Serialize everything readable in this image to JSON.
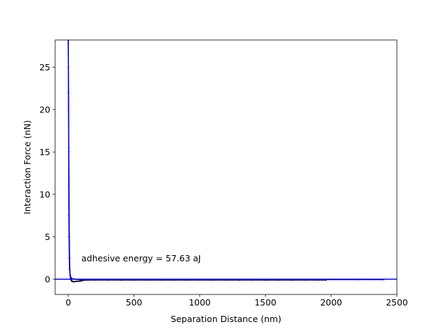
{
  "chart_data": {
    "type": "line",
    "xlabel": "Separation Distance (nm)",
    "ylabel": "Interaction Force (nN)",
    "xlim": [
      -100,
      2500
    ],
    "ylim": [
      -1.8,
      28.2
    ],
    "x_ticks": [
      0,
      500,
      1000,
      1500,
      2000,
      2500
    ],
    "y_ticks": [
      0,
      5,
      10,
      15,
      20,
      25
    ],
    "grid": false,
    "annotation": {
      "text": "adhesive energy = 57.63 aJ",
      "x": 100,
      "y": 2.1
    },
    "reference_line": {
      "y": 0,
      "color": "#0000ff"
    },
    "series": [
      {
        "color": "#000000",
        "marker": "dot",
        "x": [
          0,
          2,
          4,
          6,
          8,
          10,
          12,
          15,
          18,
          22,
          26,
          30,
          35,
          40,
          50,
          60,
          70,
          80,
          90,
          100,
          120,
          150,
          200,
          300,
          400,
          500,
          600,
          700,
          800,
          900,
          1000,
          1100,
          1200,
          1300,
          1400,
          1500,
          1600,
          1700,
          1800,
          1900,
          1960
        ],
        "y": [
          28.2,
          22.0,
          15.0,
          9.0,
          5.0,
          2.5,
          1.0,
          0.4,
          0.05,
          -0.1,
          -0.2,
          -0.25,
          -0.28,
          -0.3,
          -0.28,
          -0.25,
          -0.25,
          -0.22,
          -0.2,
          -0.2,
          -0.12,
          -0.1,
          -0.1,
          -0.1,
          -0.1,
          -0.1,
          -0.1,
          -0.1,
          -0.1,
          -0.1,
          -0.1,
          -0.1,
          -0.1,
          -0.1,
          -0.1,
          -0.1,
          -0.1,
          -0.1,
          -0.1,
          -0.1,
          -0.1
        ]
      },
      {
        "color": "#0000ff",
        "marker": "dot",
        "x": [
          0,
          1,
          2,
          3,
          4,
          5,
          6,
          8,
          10,
          14,
          20,
          30,
          50,
          100,
          300,
          600,
          1000,
          1400,
          1800,
          2200,
          2400
        ],
        "y": [
          28.2,
          25.0,
          20.0,
          15.5,
          11.0,
          7.5,
          5.0,
          2.5,
          1.2,
          0.5,
          0.2,
          0.05,
          0.0,
          -0.05,
          -0.05,
          -0.05,
          -0.05,
          -0.05,
          -0.05,
          -0.05,
          -0.05
        ]
      }
    ]
  }
}
